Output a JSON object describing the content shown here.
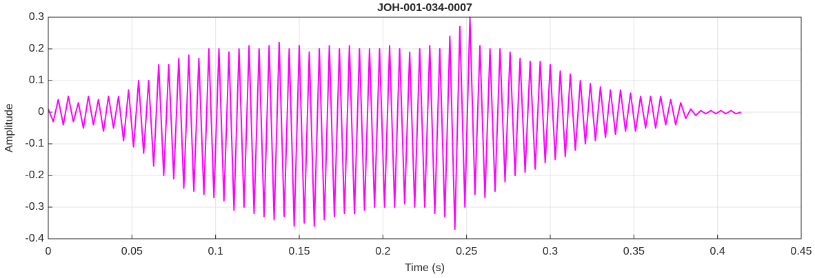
{
  "chart_data": {
    "type": "line",
    "title": "JOH-001-034-0007",
    "xlabel": "Time (s)",
    "ylabel": "Amplitude",
    "x": [
      0,
      0.003,
      0.006,
      0.009,
      0.012,
      0.015,
      0.018,
      0.021,
      0.024,
      0.027,
      0.03,
      0.033,
      0.036,
      0.039,
      0.042,
      0.045,
      0.048,
      0.051,
      0.054,
      0.057,
      0.06,
      0.063,
      0.066,
      0.069,
      0.072,
      0.075,
      0.078,
      0.081,
      0.084,
      0.087,
      0.09,
      0.093,
      0.096,
      0.099,
      0.102,
      0.105,
      0.108,
      0.111,
      0.114,
      0.117,
      0.12,
      0.123,
      0.126,
      0.129,
      0.132,
      0.135,
      0.138,
      0.141,
      0.144,
      0.147,
      0.15,
      0.153,
      0.156,
      0.159,
      0.162,
      0.165,
      0.168,
      0.171,
      0.174,
      0.177,
      0.18,
      0.183,
      0.186,
      0.189,
      0.192,
      0.195,
      0.198,
      0.201,
      0.204,
      0.207,
      0.21,
      0.213,
      0.216,
      0.219,
      0.222,
      0.225,
      0.228,
      0.231,
      0.234,
      0.237,
      0.24,
      0.243,
      0.246,
      0.249,
      0.252,
      0.255,
      0.258,
      0.261,
      0.264,
      0.267,
      0.27,
      0.273,
      0.276,
      0.279,
      0.282,
      0.285,
      0.288,
      0.291,
      0.294,
      0.297,
      0.3,
      0.303,
      0.306,
      0.309,
      0.312,
      0.315,
      0.318,
      0.321,
      0.324,
      0.327,
      0.33,
      0.333,
      0.336,
      0.339,
      0.342,
      0.345,
      0.348,
      0.351,
      0.354,
      0.357,
      0.36,
      0.363,
      0.366,
      0.369,
      0.372,
      0.375,
      0.378,
      0.381,
      0.384,
      0.387,
      0.39,
      0.393,
      0.396,
      0.399,
      0.402,
      0.405,
      0.408,
      0.411,
      0.414
    ],
    "values": [
      0.01,
      -0.03,
      0.04,
      -0.04,
      0.05,
      -0.03,
      0.03,
      -0.05,
      0.05,
      -0.04,
      0.04,
      -0.06,
      0.05,
      -0.05,
      0.05,
      -0.09,
      0.07,
      -0.11,
      0.1,
      -0.13,
      0.1,
      -0.17,
      0.15,
      -0.2,
      0.15,
      -0.21,
      0.17,
      -0.24,
      0.18,
      -0.25,
      0.17,
      -0.26,
      0.2,
      -0.27,
      0.2,
      -0.28,
      0.19,
      -0.31,
      0.2,
      -0.3,
      0.21,
      -0.32,
      0.2,
      -0.33,
      0.21,
      -0.34,
      0.22,
      -0.33,
      0.2,
      -0.36,
      0.21,
      -0.35,
      0.19,
      -0.36,
      0.2,
      -0.34,
      0.21,
      -0.33,
      0.2,
      -0.32,
      0.21,
      -0.32,
      0.2,
      -0.31,
      0.2,
      -0.3,
      0.2,
      -0.3,
      0.21,
      -0.3,
      0.2,
      -0.29,
      0.19,
      -0.3,
      0.2,
      -0.3,
      0.21,
      -0.32,
      0.2,
      -0.33,
      0.24,
      -0.37,
      0.27,
      -0.3,
      0.3,
      -0.26,
      0.21,
      -0.27,
      0.2,
      -0.25,
      0.2,
      -0.22,
      0.19,
      -0.2,
      0.17,
      -0.19,
      0.16,
      -0.18,
      0.16,
      -0.16,
      0.15,
      -0.15,
      0.13,
      -0.14,
      0.12,
      -0.12,
      0.1,
      -0.1,
      0.09,
      -0.09,
      0.08,
      -0.08,
      0.07,
      -0.07,
      0.07,
      -0.06,
      0.06,
      -0.06,
      0.05,
      -0.05,
      0.05,
      -0.05,
      0.05,
      -0.04,
      0.04,
      -0.04,
      0.03,
      -0.02,
      0.01,
      -0.01,
      0.005,
      -0.005,
      0.005,
      -0.005,
      0.005,
      -0.005,
      0.005,
      -0.005,
      0
    ],
    "color": "#ff00ff",
    "xlim": [
      0,
      0.45
    ],
    "xticks": [
      0,
      0.05,
      0.1,
      0.15,
      0.2,
      0.25,
      0.3,
      0.35,
      0.4,
      0.45
    ],
    "ylim": [
      -0.4,
      0.3
    ],
    "yticks": [
      -0.4,
      -0.3,
      -0.2,
      -0.1,
      0,
      0.1,
      0.2,
      0.3
    ],
    "grid": true
  }
}
